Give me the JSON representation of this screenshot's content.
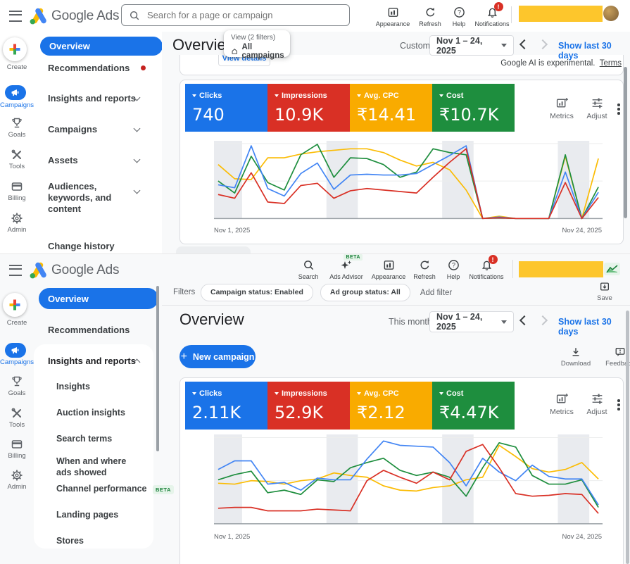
{
  "colors": {
    "accent_blue": "#1a73e8",
    "card_blue": "#1a73e8",
    "card_red": "#d93025",
    "card_yellow": "#f9ab00",
    "card_green": "#1e8e3e",
    "line_blue": "#4285f4",
    "line_red": "#d93025",
    "line_yellow": "#fbbc04",
    "line_green": "#1e8e3e",
    "badge_red": "#d93025",
    "censor_yellow": "#fdc62c",
    "beta_green": "#188038"
  },
  "chart_data": [
    {
      "id": "top-overview-performance",
      "type": "line",
      "x_days": 24,
      "x_start_label": "Nov 1, 2025",
      "x_end_label": "Nov 24, 2025",
      "ylim": [
        0,
        100
      ],
      "grid": "horizontal-sparse",
      "legend": "metric cards above chart",
      "weekend_bands": [
        [
          1,
          2
        ],
        [
          8,
          9
        ],
        [
          15,
          16
        ],
        [
          22,
          23
        ]
      ],
      "series": [
        {
          "name": "Avg. CPC",
          "color": "#fbbc04",
          "values": [
            72,
            53,
            52,
            81,
            81,
            86,
            89,
            91,
            93,
            93,
            88,
            78,
            70,
            75,
            65,
            38,
            0,
            3,
            0,
            0,
            0,
            83,
            0,
            80
          ]
        },
        {
          "name": "Cost",
          "color": "#1e8e3e",
          "values": [
            50,
            34,
            83,
            48,
            38,
            85,
            99,
            55,
            81,
            80,
            72,
            55,
            62,
            93,
            88,
            85,
            0,
            1,
            0,
            0,
            0,
            85,
            0,
            42
          ]
        },
        {
          "name": "Clicks",
          "color": "#4285f4",
          "values": [
            45,
            41,
            97,
            40,
            30,
            60,
            74,
            39,
            58,
            59,
            58,
            58,
            60,
            72,
            84,
            97,
            0,
            2,
            0,
            0,
            0,
            62,
            0,
            35
          ]
        },
        {
          "name": "Impressions",
          "color": "#d93025",
          "values": [
            32,
            27,
            61,
            22,
            20,
            44,
            47,
            27,
            37,
            40,
            38,
            36,
            34,
            55,
            75,
            93,
            0,
            1,
            0,
            0,
            0,
            48,
            0,
            28
          ]
        }
      ]
    },
    {
      "id": "bottom-overview-performance",
      "type": "line",
      "x_days": 24,
      "x_start_label": "Nov 1, 2025",
      "x_end_label": "Nov 24, 2025",
      "ylim": [
        0,
        100
      ],
      "grid": "horizontal-sparse",
      "legend": "metric cards above chart",
      "weekend_bands": [
        [
          1,
          2
        ],
        [
          8,
          9
        ],
        [
          15,
          16
        ],
        [
          22,
          23
        ]
      ],
      "series": [
        {
          "name": "Avg. CPC",
          "color": "#fbbc04",
          "values": [
            47,
            46,
            50,
            49,
            46,
            50,
            52,
            59,
            56,
            54,
            44,
            39,
            38,
            42,
            44,
            51,
            54,
            91,
            78,
            64,
            60,
            63,
            71,
            52
          ]
        },
        {
          "name": "Cost",
          "color": "#1e8e3e",
          "values": [
            51,
            57,
            61,
            36,
            39,
            34,
            51,
            49,
            65,
            71,
            76,
            62,
            56,
            60,
            54,
            32,
            65,
            94,
            89,
            56,
            46,
            46,
            51,
            19
          ]
        },
        {
          "name": "Clicks",
          "color": "#4285f4",
          "values": [
            63,
            73,
            73,
            46,
            48,
            39,
            53,
            51,
            51,
            75,
            96,
            91,
            90,
            89,
            71,
            44,
            76,
            60,
            50,
            68,
            55,
            52,
            52,
            22
          ]
        },
        {
          "name": "Impressions",
          "color": "#d93025",
          "values": [
            18,
            19,
            19,
            15,
            15,
            15,
            17,
            16,
            15,
            50,
            62,
            54,
            47,
            60,
            51,
            84,
            92,
            65,
            35,
            32,
            33,
            35,
            34,
            12
          ]
        }
      ]
    }
  ],
  "top": {
    "header": {
      "logo_text": "Google Ads",
      "search_placeholder": "Search for a page or campaign",
      "actions": [
        {
          "label": "Appearance"
        },
        {
          "label": "Refresh"
        },
        {
          "label": "Help"
        },
        {
          "label": "Notifications",
          "badge": "!"
        }
      ]
    },
    "rail": [
      {
        "label": "Create"
      },
      {
        "label": "Campaigns",
        "selected": true
      },
      {
        "label": "Goals"
      },
      {
        "label": "Tools"
      },
      {
        "label": "Billing"
      },
      {
        "label": "Admin"
      }
    ],
    "nav": {
      "items": [
        {
          "label": "Overview",
          "selected": true
        },
        {
          "label": "Recommendations",
          "dot": true
        },
        {
          "label": "Insights and reports",
          "expandable": true
        },
        {
          "label": "Campaigns",
          "expandable": true
        },
        {
          "label": "Assets",
          "expandable": true
        },
        {
          "label": "Audiences, keywords, and content",
          "expandable": true
        },
        {
          "label": "Change history"
        }
      ]
    },
    "main": {
      "title": "Overview",
      "view_caption": "View (2 filters)",
      "view_scope": "All campaigns",
      "view_details": "View details",
      "range_label": "Custom",
      "date_range": "Nov 1 – 24, 2025",
      "show_last": "Show last 30 days",
      "ai_note": "Google AI is experimental.",
      "ai_terms": "Terms",
      "metrics_btn": "Metrics",
      "adjust_btn": "Adjust"
    },
    "cards": [
      {
        "label": "Clicks",
        "value": "740",
        "color": "#1a73e8"
      },
      {
        "label": "Impressions",
        "value": "10.9K",
        "color": "#d93025"
      },
      {
        "label": "Avg. CPC",
        "value": "₹14.41",
        "color": "#f9ab00"
      },
      {
        "label": "Cost",
        "value": "₹10.7K",
        "color": "#1e8e3e"
      }
    ]
  },
  "bottom": {
    "header": {
      "logo_text": "Google Ads",
      "actions": [
        {
          "label": "Search"
        },
        {
          "label": "Ads Advisor",
          "beta": "BETA"
        },
        {
          "label": "Appearance"
        },
        {
          "label": "Refresh"
        },
        {
          "label": "Help"
        },
        {
          "label": "Notifications",
          "badge": "!"
        }
      ]
    },
    "filters": {
      "label": "Filters",
      "chips": [
        {
          "label": "Campaign status: Enabled"
        },
        {
          "label": "Ad group status: All"
        }
      ],
      "add_label": "Add filter",
      "save_label": "Save"
    },
    "rail": [
      {
        "label": "Create"
      },
      {
        "label": "Campaigns",
        "selected": true
      },
      {
        "label": "Goals"
      },
      {
        "label": "Tools"
      },
      {
        "label": "Billing"
      },
      {
        "label": "Admin"
      }
    ],
    "nav": {
      "items": [
        {
          "label": "Overview",
          "selected": true
        },
        {
          "label": "Recommendations"
        }
      ],
      "group": {
        "label": "Insights and reports",
        "expanded": true,
        "children": [
          {
            "label": "Insights"
          },
          {
            "label": "Auction insights"
          },
          {
            "label": "Search terms"
          },
          {
            "label": "When and where ads showed"
          },
          {
            "label": "Channel performance",
            "beta": "BETA"
          },
          {
            "label": "Landing pages"
          },
          {
            "label": "Stores"
          }
        ]
      }
    },
    "main": {
      "title": "Overview",
      "range_label": "This month",
      "date_range": "Nov 1 – 24, 2025",
      "show_last": "Show last 30 days",
      "new_campaign": "New campaign",
      "download": "Download",
      "feedback": "Feedback",
      "metrics_btn": "Metrics",
      "adjust_btn": "Adjust"
    },
    "cards": [
      {
        "label": "Clicks",
        "value": "2.11K",
        "color": "#1a73e8"
      },
      {
        "label": "Impressions",
        "value": "52.9K",
        "color": "#d93025"
      },
      {
        "label": "Avg. CPC",
        "value": "₹2.12",
        "color": "#f9ab00"
      },
      {
        "label": "Cost",
        "value": "₹4.47K",
        "color": "#1e8e3e"
      }
    ]
  }
}
